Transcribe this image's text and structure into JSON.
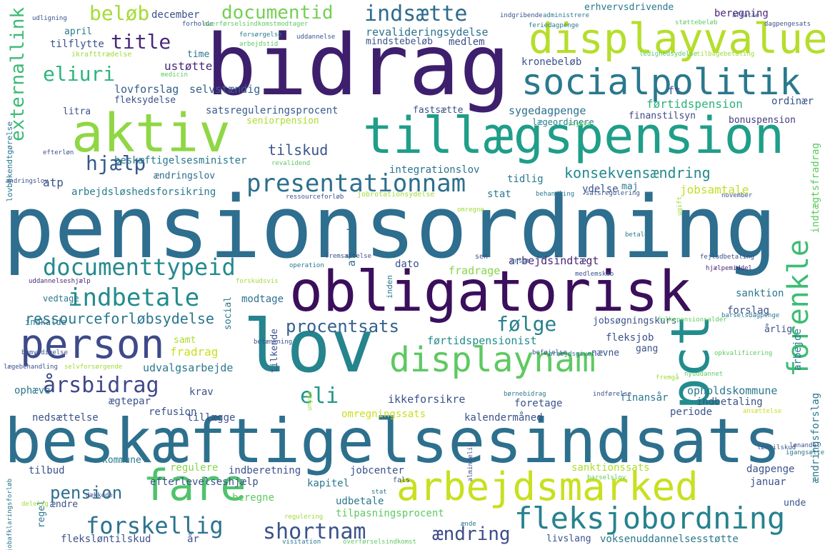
{
  "image": {
    "kind": "word-cloud",
    "background": "#ffffff",
    "palette": [
      "#440154",
      "#3b528b",
      "#21918c",
      "#2a9d8f",
      "#5ec962",
      "#a0da39",
      "#c8e020",
      "#fde725"
    ]
  },
  "words": [
    {
      "text": "bidrag",
      "color": "#3e1f6d"
    },
    {
      "text": "pensionsordning",
      "color": "#2e6e8e"
    },
    {
      "text": "beskæftigelsesindsats",
      "color": "#2d708e"
    },
    {
      "text": "obligatorisk",
      "color": "#3b0f5c"
    },
    {
      "text": "lov",
      "color": "#25848e"
    },
    {
      "text": "tillægspension",
      "color": "#1f9e89"
    },
    {
      "text": "aktiv",
      "color": "#8fd744"
    },
    {
      "text": "displayvalue",
      "color": "#b5de2b"
    },
    {
      "text": "socialpolitik",
      "color": "#2a788e"
    },
    {
      "text": "fare",
      "color": "#4ec36b"
    },
    {
      "text": "arbejdsmarked",
      "color": "#c8e020"
    },
    {
      "text": "displaynam",
      "color": "#5ec962"
    },
    {
      "text": "pct",
      "color": "#228c8d"
    },
    {
      "text": "person",
      "color": "#3e4a89"
    },
    {
      "text": "fleksjobordning",
      "color": "#26828e"
    },
    {
      "text": "forenkle",
      "color": "#3dbc74"
    },
    {
      "text": "presentationnam",
      "color": "#2d6f8e"
    },
    {
      "text": "documenttypeid",
      "color": "#238a8d"
    },
    {
      "text": "indbetale",
      "color": "#228b8d"
    },
    {
      "text": "forskellig",
      "color": "#2c728e"
    },
    {
      "text": "shortnam",
      "color": "#3b528b"
    },
    {
      "text": "indsætte",
      "color": "#2f6b8e"
    },
    {
      "text": "documentid",
      "color": "#75d054"
    },
    {
      "text": "beløb",
      "color": "#a5db36"
    },
    {
      "text": "title",
      "color": "#482878"
    },
    {
      "text": "eliuri",
      "color": "#2fb47c"
    },
    {
      "text": "hjælp",
      "color": "#38588c"
    },
    {
      "text": "externallink",
      "color": "#3bbb75"
    },
    {
      "text": "årsbidrag",
      "color": "#3f4889"
    },
    {
      "text": "følge",
      "color": "#27808e"
    },
    {
      "text": "procentsats",
      "color": "#34618d"
    },
    {
      "text": "eli",
      "color": "#1f968b"
    },
    {
      "text": "pension",
      "color": "#2d708e"
    },
    {
      "text": "ressourceforløbsydelse",
      "color": "#2a768e"
    },
    {
      "text": "konsekvensændring",
      "color": "#23898e"
    },
    {
      "text": "tilskud",
      "color": "#39568c"
    },
    {
      "text": "ændring",
      "color": "#3e4c8a"
    },
    {
      "text": "lovforslag",
      "color": "#355f8d"
    },
    {
      "text": "selvstændig",
      "color": "#34608d"
    },
    {
      "text": "satsreguleringsprocent",
      "color": "#355e8d"
    },
    {
      "text": "sygedagpenge",
      "color": "#2c718e"
    },
    {
      "text": "beskæftigelsesminister",
      "color": "#2a788e"
    },
    {
      "text": "ændringslov",
      "color": "#2e6d8e"
    },
    {
      "text": "arbejdsløshedsforsikring",
      "color": "#287c8e"
    },
    {
      "text": "integrationslov",
      "color": "#2b748e"
    },
    {
      "text": "revalideringsydelse",
      "color": "#2c728e"
    },
    {
      "text": "kronebeløb",
      "color": "#3b528b"
    },
    {
      "text": "førtidspension",
      "color": "#2db27d"
    },
    {
      "text": "seniorpension",
      "color": "#addc30"
    },
    {
      "text": "fastsætte",
      "color": "#3b528b"
    },
    {
      "text": "finanstilsyn",
      "color": "#3e4989"
    },
    {
      "text": "bonuspension",
      "color": "#443a83"
    },
    {
      "text": "lægeordinere",
      "color": "#26828e"
    },
    {
      "text": "ordinær",
      "color": "#3b528b"
    },
    {
      "text": "jobsamtale",
      "color": "#c2df23"
    },
    {
      "text": "ydelse",
      "color": "#3b528b"
    },
    {
      "text": "maj",
      "color": "#2a788e"
    },
    {
      "text": "stat",
      "color": "#2a788e"
    },
    {
      "text": "tidlig",
      "color": "#2a788e"
    },
    {
      "text": "arbejdsindtægt",
      "color": "#482878"
    },
    {
      "text": "fradrage",
      "color": "#86d549"
    },
    {
      "text": "fradrag",
      "color": "#c8e020"
    },
    {
      "text": "dato",
      "color": "#3b528b"
    },
    {
      "text": "afrunde",
      "color": "#2d708e"
    },
    {
      "text": "atp",
      "color": "#3b528b"
    },
    {
      "text": "modtage",
      "color": "#2c728e"
    },
    {
      "text": "vedtage",
      "color": "#2a788e"
    },
    {
      "text": "indkalde",
      "color": "#2a788e"
    },
    {
      "text": "forslag",
      "color": "#3b528b"
    },
    {
      "text": "sanktion",
      "color": "#2a788e"
    },
    {
      "text": "jobsøgningskurs",
      "color": "#3b528b"
    },
    {
      "text": "førtidspensionist",
      "color": "#228c8d"
    },
    {
      "text": "fleksjob",
      "color": "#3b528b"
    },
    {
      "text": "nævne",
      "color": "#3b528b"
    },
    {
      "text": "gang",
      "color": "#3b528b"
    },
    {
      "text": "årlig",
      "color": "#3b528b"
    },
    {
      "text": "arbejde",
      "color": "#2a788e"
    },
    {
      "text": "samt",
      "color": "#addc30"
    },
    {
      "text": "udvalgsarbejde",
      "color": "#2a788e"
    },
    {
      "text": "krav",
      "color": "#3b528b"
    },
    {
      "text": "tillægge",
      "color": "#3b528b"
    },
    {
      "text": "ikkeforsikre",
      "color": "#3b528b"
    },
    {
      "text": "foretage",
      "color": "#3b528b"
    },
    {
      "text": "opholdskommune",
      "color": "#2a788e"
    },
    {
      "text": "indbetaling",
      "color": "#3b528b"
    },
    {
      "text": "finansår",
      "color": "#2a788e"
    },
    {
      "text": "periode",
      "color": "#3b528b"
    },
    {
      "text": "kalendermåned",
      "color": "#3b528b"
    },
    {
      "text": "refusion",
      "color": "#3b528b"
    },
    {
      "text": "nedsættelse",
      "color": "#3b528b"
    },
    {
      "text": "ophæve",
      "color": "#2a788e"
    },
    {
      "text": "ægtepar",
      "color": "#3b528b"
    },
    {
      "text": "omregningssats",
      "color": "#c8e020"
    },
    {
      "text": "tilbud",
      "color": "#3b528b"
    },
    {
      "text": "kommune",
      "color": "#2a788e"
    },
    {
      "text": "regulere",
      "color": "#86d549"
    },
    {
      "text": "indberetning",
      "color": "#3b528b"
    },
    {
      "text": "jobcenter",
      "color": "#3b528b"
    },
    {
      "text": "sanktionssats",
      "color": "#addc30"
    },
    {
      "text": "dagpenge",
      "color": "#3b528b"
    },
    {
      "text": "efterlevelseshjælp",
      "color": "#3b528b"
    },
    {
      "text": "kapitel",
      "color": "#2a788e"
    },
    {
      "text": "januar",
      "color": "#3b528b"
    },
    {
      "text": "beregne",
      "color": "#5ec962"
    },
    {
      "text": "udbetale",
      "color": "#2a788e"
    },
    {
      "text": "tilpasningsprocent",
      "color": "#5ec962"
    },
    {
      "text": "unde",
      "color": "#3b528b"
    },
    {
      "text": "ændre",
      "color": "#3b528b"
    },
    {
      "text": "regel",
      "color": "#2a788e"
    },
    {
      "text": "fleksløntilskud",
      "color": "#3b528b"
    },
    {
      "text": "år",
      "color": "#3b528b"
    },
    {
      "text": "livslang",
      "color": "#3b528b"
    },
    {
      "text": "voksenuddannelsesstøtte",
      "color": "#2a788e"
    },
    {
      "text": "december",
      "color": "#3b528b"
    },
    {
      "text": "april",
      "color": "#2a788e"
    },
    {
      "text": "tilflytte",
      "color": "#3b528b"
    },
    {
      "text": "time",
      "color": "#2a788e"
    },
    {
      "text": "ustøtte",
      "color": "#482878"
    },
    {
      "text": "ft",
      "color": "#3b528b"
    },
    {
      "text": "erhvervsdrivende",
      "color": "#2a788e"
    },
    {
      "text": "beregning",
      "color": "#482878"
    },
    {
      "text": "medlem",
      "color": "#3b528b"
    },
    {
      "text": "mindstebeløb",
      "color": "#3b528b"
    },
    {
      "text": "fleksydelse",
      "color": "#3b528b"
    },
    {
      "text": "litra",
      "color": "#3b528b"
    },
    {
      "text": "lovbekendtgørelse",
      "color": "#2a788e"
    },
    {
      "text": "indtægtsfradrag",
      "color": "#5ec962"
    },
    {
      "text": "ændringsforslag",
      "color": "#2a788e"
    },
    {
      "text": "social",
      "color": "#2a788e"
    },
    {
      "text": "tilkende",
      "color": "#3b528b"
    },
    {
      "text": "inden",
      "color": "#2a788e"
    },
    {
      "text": "udligning",
      "color": "#3b528b"
    },
    {
      "text": "forholde",
      "color": "#3b528b"
    },
    {
      "text": "overførselsindkomstmodtager",
      "color": "#5ec962"
    },
    {
      "text": "indgribende",
      "color": "#3b528b"
    },
    {
      "text": "administrere",
      "color": "#2a788e"
    },
    {
      "text": "affatte",
      "color": "#3b528b"
    },
    {
      "text": "feriedagpenge",
      "color": "#2a788e"
    },
    {
      "text": "støttebeløb",
      "color": "#5ec962"
    },
    {
      "text": "dagpengesats",
      "color": "#3b528b"
    },
    {
      "text": "forsørgelse",
      "color": "#2a788e"
    },
    {
      "text": "uddannelse",
      "color": "#3b528b"
    },
    {
      "text": "arbejdstid",
      "color": "#5ec962"
    },
    {
      "text": "ikrafttrædelse",
      "color": "#a0da39"
    },
    {
      "text": "ledighedsydelse",
      "color": "#5ec962"
    },
    {
      "text": "tilbagebetaling",
      "color": "#a0da39"
    },
    {
      "text": "medicin",
      "color": "#5ec962"
    },
    {
      "text": "efterløn",
      "color": "#3b528b"
    },
    {
      "text": "revalidend",
      "color": "#5ec962"
    },
    {
      "text": "ressourceforløb",
      "color": "#3b528b"
    },
    {
      "text": "jobrotationsydelse",
      "color": "#a0da39"
    },
    {
      "text": "behandling",
      "color": "#2a788e"
    },
    {
      "text": "satsregulering",
      "color": "#3b528b"
    },
    {
      "text": "november",
      "color": "#3b528b"
    },
    {
      "text": "stykke",
      "color": "#5ec962"
    },
    {
      "text": "omregne",
      "color": "#a0da39"
    },
    {
      "text": "betale",
      "color": "#2a788e"
    },
    {
      "text": "ugift",
      "color": "#a0da39"
    },
    {
      "text": "fejludbetaling",
      "color": "#3b528b"
    },
    {
      "text": "hjælpemiddel",
      "color": "#482878"
    },
    {
      "text": "fremsættelse",
      "color": "#3b528b"
    },
    {
      "text": "operation",
      "color": "#2a788e"
    },
    {
      "text": "sen",
      "color": "#3b528b"
    },
    {
      "text": "ansat",
      "color": "#2a788e"
    },
    {
      "text": "uddannelseshjælp",
      "color": "#482878"
    },
    {
      "text": "forskudsvis",
      "color": "#a0da39"
    },
    {
      "text": "medlemskab",
      "color": "#3b528b"
    },
    {
      "text": "barselsdagpenge",
      "color": "#2a788e"
    },
    {
      "text": "folkepensionsalder",
      "color": "#5ec962"
    },
    {
      "text": "bemyndigelse",
      "color": "#3b528b"
    },
    {
      "text": "betænkning",
      "color": "#3b528b"
    },
    {
      "text": "beføjelse",
      "color": "#3b528b"
    },
    {
      "text": "arbejdsgiver",
      "color": "#2a788e"
    },
    {
      "text": "opkvalificering",
      "color": "#5ec962"
    },
    {
      "text": "selvforsørgende",
      "color": "#a0da39"
    },
    {
      "text": "lægebehandling",
      "color": "#3b528b"
    },
    {
      "text": "nyuddannet",
      "color": "#5ec962"
    },
    {
      "text": "fremgå",
      "color": "#a0da39"
    },
    {
      "text": "indførelse",
      "color": "#3b528b"
    },
    {
      "text": "børnebidrag",
      "color": "#2a788e"
    },
    {
      "text": "ansættelse",
      "color": "#c8e020"
    },
    {
      "text": "almindelig",
      "color": "#3b528b"
    },
    {
      "text": "lønandel",
      "color": "#3b528b"
    },
    {
      "text": "løntilskud",
      "color": "#3b528b"
    },
    {
      "text": "igangsætte",
      "color": "#2a788e"
    },
    {
      "text": "barselslov",
      "color": "#5ec962"
    },
    {
      "text": "stat",
      "color": "#2a788e"
    },
    {
      "text": "fals",
      "color": "#3b528b"
    },
    {
      "text": "regulering",
      "color": "#a0da39"
    },
    {
      "text": "visitation",
      "color": "#2a788e"
    },
    {
      "text": "overførselsindkomst",
      "color": "#5ec962"
    },
    {
      "text": "jobafklaringsforløb",
      "color": "#2a788e"
    },
    {
      "text": "delelig",
      "color": "#a0da39"
    },
    {
      "text": "dækkede",
      "color": "#3b528b"
    },
    {
      "text": "ænde",
      "color": "#2a788e"
    },
    {
      "text": "ændringslov",
      "color": "#3b528b"
    },
    {
      "text": "unyde",
      "color": "#a0da39"
    }
  ]
}
